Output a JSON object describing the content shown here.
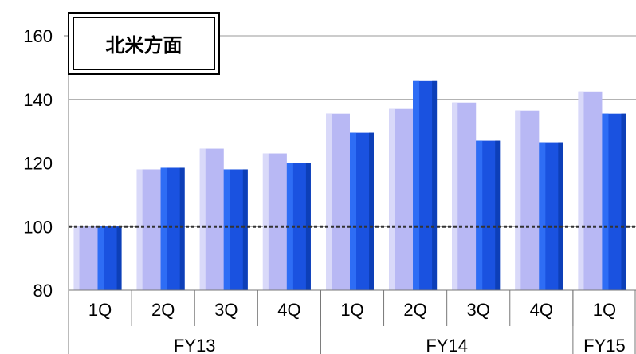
{
  "chart_data": {
    "type": "bar",
    "title": "北米方面",
    "categories": [
      "1Q",
      "2Q",
      "3Q",
      "4Q",
      "1Q",
      "2Q",
      "3Q",
      "4Q",
      "1Q"
    ],
    "groups": [
      {
        "label": "FY13",
        "count": 4
      },
      {
        "label": "FY14",
        "count": 4
      },
      {
        "label": "FY15",
        "count": 1
      }
    ],
    "series": [
      {
        "values": [
          100,
          118,
          124.5,
          123,
          135.5,
          137,
          139,
          136.5,
          142.5
        ],
        "color": "#b8b8f4"
      },
      {
        "values": [
          100,
          118.5,
          118,
          120,
          129.5,
          146,
          127,
          126.5,
          135.5
        ],
        "color": "#1a52e0"
      }
    ],
    "ylim": [
      80,
      160
    ],
    "yticks": [
      80,
      100,
      120,
      140,
      160
    ],
    "reference_line": 100,
    "grid": true
  }
}
